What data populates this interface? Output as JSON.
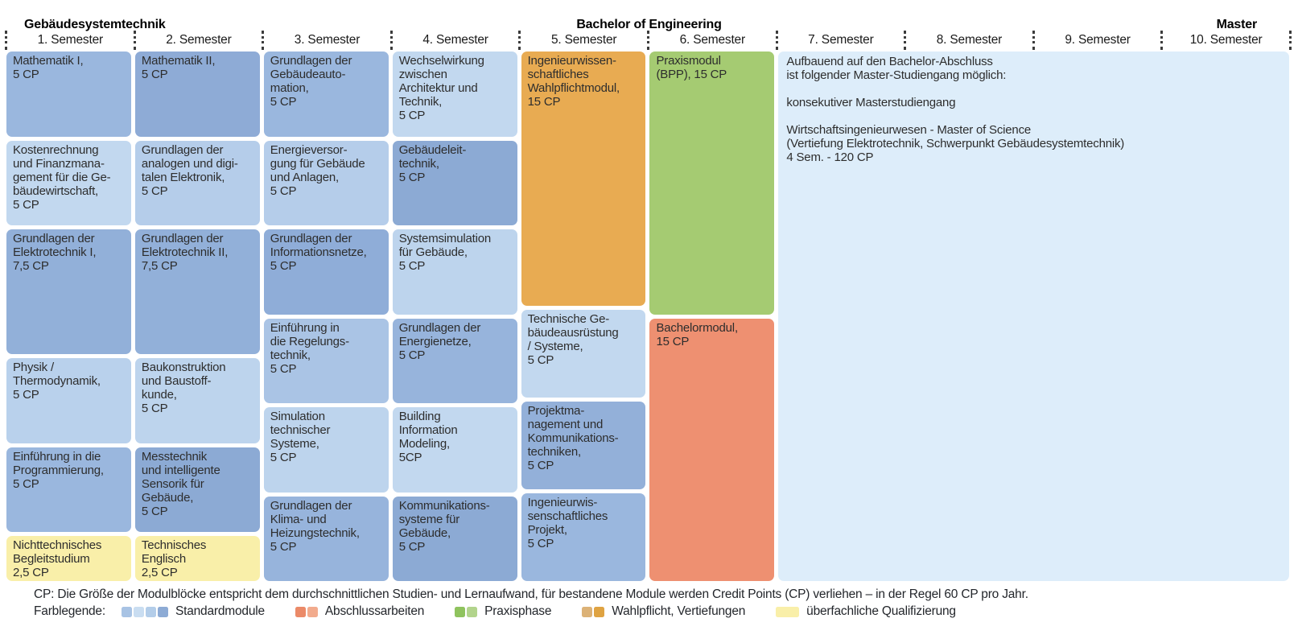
{
  "header": {
    "program_title": "Gebäudesystemtechnik",
    "degree_title": "Bachelor of Engineering",
    "master_title": "Master"
  },
  "semester_labels": [
    "1. Semester",
    "2. Semester",
    "3. Semester",
    "4. Semester",
    "5. Semester",
    "6. Semester",
    "7. Semester",
    "8. Semester",
    "9. Semester",
    "10. Semester"
  ],
  "columns": [
    {
      "semester": "1. Semester",
      "modules": [
        {
          "label": "Mathematik I,\n5 CP",
          "cp": 5,
          "color": "#9ab7de"
        },
        {
          "label": "Kostenrechnung\nund Finanzmana-\ngement für die Ge-\nbäudewirtschaft,\n5 CP",
          "cp": 5,
          "color": "#c2d8ef"
        },
        {
          "label": "Grundlagen der\nElektrotechnik I,\n7,5 CP",
          "cp": 7.5,
          "color": "#92b0d9"
        },
        {
          "label": "Physik /\nThermodynamik,\n5 CP",
          "cp": 5,
          "color": "#b9d1ec"
        },
        {
          "label": "Einführung in die\nProgrammierung,\n5 CP",
          "cp": 5,
          "color": "#9ab7de"
        },
        {
          "label": "Nichttechnisches\nBegleitstudium\n2,5 CP",
          "cp": 2.5,
          "color": "#f9efa9"
        }
      ]
    },
    {
      "semester": "2. Semester",
      "modules": [
        {
          "label": "Mathematik II,\n5 CP",
          "cp": 5,
          "color": "#8eabd6"
        },
        {
          "label": "Grundlagen der\nanalogen und digi-\ntalen Elektronik,\n5 CP",
          "cp": 5,
          "color": "#b5cdea"
        },
        {
          "label": "Grundlagen der\nElektrotechnik II,\n7,5 CP",
          "cp": 7.5,
          "color": "#92b0d9"
        },
        {
          "label": "Baukonstruktion\nund Baustoff-\nkunde,\n5 CP",
          "cp": 5,
          "color": "#bdd4ed"
        },
        {
          "label": "Messtechnik\nund intelligente\nSensorik für\nGebäude,\n5 CP",
          "cp": 5,
          "color": "#8caad4"
        },
        {
          "label": "Technisches\nEnglisch\n2,5 CP",
          "cp": 2.5,
          "color": "#f9efa9"
        }
      ]
    },
    {
      "semester": "3. Semester",
      "modules": [
        {
          "label": "Grundlagen der\nGebäudeauto-\nmation,\n5 CP",
          "cp": 5,
          "color": "#9ab7de"
        },
        {
          "label": "Energieversor-\ngung für Gebäude\nund Anlagen,\n5 CP",
          "cp": 5,
          "color": "#b5cdea"
        },
        {
          "label": "Grundlagen der\nInformationsnetze,\n5 CP",
          "cp": 5,
          "color": "#8fadd8"
        },
        {
          "label": "Einführung in\ndie Regelungs-\ntechnik,\n5 CP",
          "cp": 5,
          "color": "#aac4e5"
        },
        {
          "label": "Simulation\ntechnischer\nSysteme,\n5 CP",
          "cp": 5,
          "color": "#bdd4ed"
        },
        {
          "label": "Grundlagen der\nKlima- und\nHeizungstechnik,\n5 CP",
          "cp": 5,
          "color": "#97b4dc"
        }
      ]
    },
    {
      "semester": "4. Semester",
      "modules": [
        {
          "label": "Wechselwirkung\nzwischen\nArchitektur und\nTechnik,\n5 CP",
          "cp": 5,
          "color": "#c2d8ef"
        },
        {
          "label": "Gebäudeleit-\ntechnik,\n5 CP",
          "cp": 5,
          "color": "#8caad4"
        },
        {
          "label": "Systemsimulation\nfür Gebäude,\n5 CP",
          "cp": 5,
          "color": "#bdd4ed"
        },
        {
          "label": "Grundlagen der\nEnergienetze,\n5 CP",
          "cp": 5,
          "color": "#97b4dc"
        },
        {
          "label": "Building\nInformation\nModeling,\n5CP",
          "cp": 5,
          "color": "#c2d8ef"
        },
        {
          "label": "Kommunikations-\nsysteme für\nGebäude,\n5 CP",
          "cp": 5,
          "color": "#8caad4"
        }
      ]
    },
    {
      "semester": "5. Semester",
      "modules": [
        {
          "label": "Ingenieurwissen-\nschaftliches\nWahlpflichtmodul,\n15 CP",
          "cp": 15,
          "color": "#e8ab52"
        },
        {
          "label": "Technische Ge-\nbäudeausrüstung\n/ Systeme,\n5 CP",
          "cp": 5,
          "color": "#c2d8ef"
        },
        {
          "label": "Projektma-\nnagement und\nKommunikations-\ntechniken,\n5 CP",
          "cp": 5,
          "color": "#93b0d9"
        },
        {
          "label": "Ingenieurwis-\nsenschaftliches\nProjekt,\n5 CP",
          "cp": 5,
          "color": "#9ab7de"
        }
      ]
    },
    {
      "semester": "6. Semester",
      "modules": [
        {
          "label": "Praxismodul\n(BPP), 15 CP",
          "cp": 15,
          "color": "#a5cb72"
        },
        {
          "label": "Bachelormodul,\n15 CP",
          "cp": 15,
          "color": "#ee9071"
        }
      ]
    }
  ],
  "master_block": {
    "text": "Aufbauend auf den Bachelor-Abschluss\nist folgender Master-Studiengang möglich:\n\nkonsekutiver Masterstudiengang\n\nWirtschaftsingenieurwesen - Master of Science\n(Vertiefung Elektrotechnik, Schwerpunkt Gebäudesystemtechnik)\n4 Sem. - 120 CP",
    "color": "#ddedfa"
  },
  "footer": {
    "cp_note": "CP: Die Größe der Modulblöcke entspricht dem durchschnittlichen Studien- und Lernaufwand, für bestandene Module werden Credit Points (CP) verliehen – in der Regel 60 CP pro Jahr.",
    "legend_title": "Farblegende:",
    "legend": [
      {
        "label": "Standardmodule",
        "swatches": [
          "#a8c3e4",
          "#c9ddf1",
          "#b3cde9",
          "#8dabd5"
        ],
        "wide": false
      },
      {
        "label": "Abschlussarbeiten",
        "swatches": [
          "#eb8a68",
          "#f2ab8d"
        ],
        "wide": false
      },
      {
        "label": "Praxisphase",
        "swatches": [
          "#8fc35e",
          "#b2d48c"
        ],
        "wide": false
      },
      {
        "label": "Wahlpflicht, Vertiefungen",
        "swatches": [
          "#dcb277",
          "#dfa342"
        ],
        "wide": false
      },
      {
        "label": "überfachliche Qualifizierung",
        "swatches": [
          "#f9efa9"
        ],
        "wide": true
      }
    ]
  }
}
